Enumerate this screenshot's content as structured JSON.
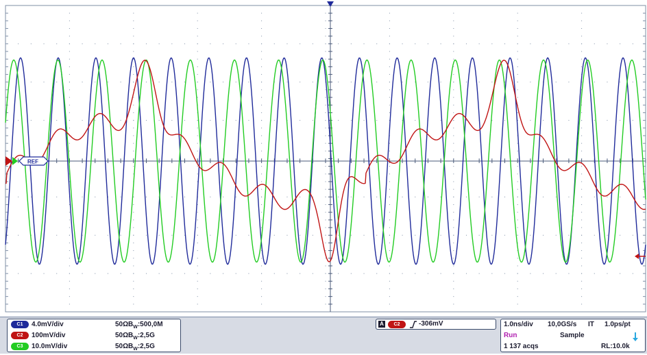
{
  "colors": {
    "ch1": "#1f2a9a",
    "ch2": "#c01414",
    "ch3": "#22cc22",
    "grid": "#7f8fa6",
    "run": "#b020b0",
    "trigger_marker": "#1f2a9a"
  },
  "channels": [
    {
      "id": "C1",
      "scale": "4.0mV/div",
      "impedance": "50Ω",
      "bw_prefix": "B",
      "bw_sub": "W",
      "bandwidth": ":500,0M",
      "color": "#1f2a9a"
    },
    {
      "id": "C2",
      "scale": "100mV/div",
      "impedance": "50Ω",
      "bw_prefix": "B",
      "bw_sub": "W",
      "bandwidth": ":2,5G",
      "color": "#c01414"
    },
    {
      "id": "C3",
      "scale": "10.0mV/div",
      "impedance": "50Ω",
      "bw_prefix": "B",
      "bw_sub": "W",
      "bandwidth": ":2,5G",
      "color": "#22cc22"
    }
  ],
  "trigger": {
    "mode_icon": "A",
    "source": "C2",
    "slope_icon": "rising-edge-icon",
    "level": "-306mV"
  },
  "horizontal": {
    "time_div": "1.0ns/div",
    "sample_rate": "10,0GS/s",
    "mode": "IT",
    "resolution": "1.0ps/pt",
    "state": "Run",
    "acq_mode": "Sample",
    "acqs": "1 137 acqs",
    "record_length": "RL:10.0k"
  },
  "markers": {
    "ref_label": "REF"
  },
  "waveforms": {
    "ch1": {
      "frequency_ghz": 1.7,
      "amplitude_div": 3.5
    },
    "ch3": {
      "frequency_ghz": 1.45,
      "amplitude_div": 3.3
    },
    "ch2": {
      "peak_div": 4.1,
      "trough_div": -4.1
    }
  }
}
